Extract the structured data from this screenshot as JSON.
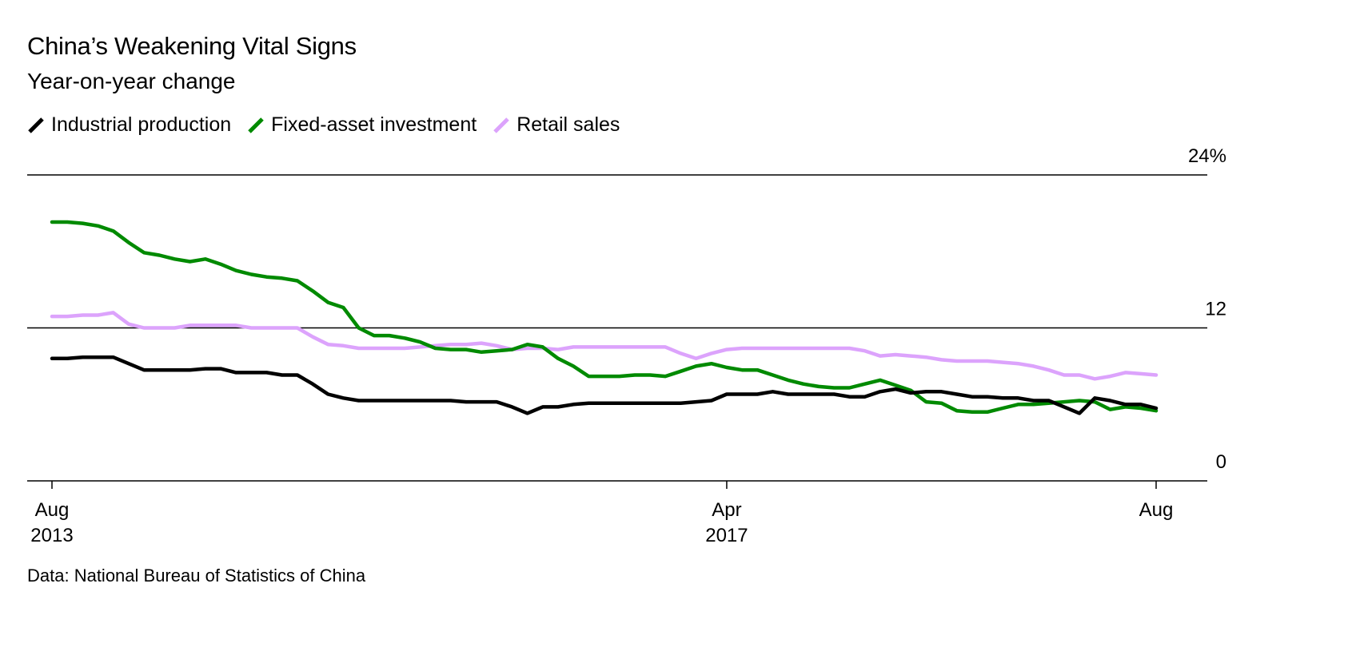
{
  "chart_data": {
    "type": "line",
    "title": "China’s Weakening Vital Signs",
    "subtitle": "Year-on-year change",
    "source": "Data: National Bureau of Statistics of China",
    "ylim": [
      0,
      24
    ],
    "y_ticks": [
      {
        "value": 0,
        "label": "0"
      },
      {
        "value": 12,
        "label": "12"
      },
      {
        "value": 24,
        "label": "24%"
      }
    ],
    "x_ticks": [
      {
        "date": "2013-08",
        "label": "Aug",
        "label2": "2013"
      },
      {
        "date": "2017-04",
        "label": "Apr",
        "label2": "2017"
      },
      {
        "date": "2019-08",
        "label": "Aug",
        "label2": ""
      }
    ],
    "grid": "horizontal at labeled ticks",
    "legend_placement": "top-left",
    "x": [
      "2013-08",
      "2013-09",
      "2013-10",
      "2013-11",
      "2013-12",
      "2014-01",
      "2014-02",
      "2014-03",
      "2014-04",
      "2014-05",
      "2014-06",
      "2014-07",
      "2014-08",
      "2014-09",
      "2014-10",
      "2014-11",
      "2014-12",
      "2015-01",
      "2015-02",
      "2015-03",
      "2015-04",
      "2015-05",
      "2015-06",
      "2015-07",
      "2015-08",
      "2015-09",
      "2015-10",
      "2015-11",
      "2015-12",
      "2016-01",
      "2016-02",
      "2016-03",
      "2016-04",
      "2016-05",
      "2016-06",
      "2016-07",
      "2016-08",
      "2016-09",
      "2016-10",
      "2016-11",
      "2016-12",
      "2017-01",
      "2017-02",
      "2017-03",
      "2017-04",
      "2017-05",
      "2017-06",
      "2017-07",
      "2017-08",
      "2017-09",
      "2017-10",
      "2017-11",
      "2017-12",
      "2018-01",
      "2018-02",
      "2018-03",
      "2018-04",
      "2018-05",
      "2018-06",
      "2018-07",
      "2018-08",
      "2018-09",
      "2018-10",
      "2018-11",
      "2018-12",
      "2019-01",
      "2019-02",
      "2019-03",
      "2019-04",
      "2019-05",
      "2019-06",
      "2019-07",
      "2019-08"
    ],
    "series": [
      {
        "name": "Industrial production",
        "color": "#000000",
        "values": [
          9.6,
          9.6,
          9.7,
          9.7,
          9.7,
          9.2,
          8.7,
          8.7,
          8.7,
          8.7,
          8.8,
          8.8,
          8.5,
          8.5,
          8.5,
          8.3,
          8.3,
          7.6,
          6.8,
          6.5,
          6.3,
          6.3,
          6.3,
          6.3,
          6.3,
          6.3,
          6.3,
          6.2,
          6.2,
          6.2,
          5.8,
          5.3,
          5.8,
          5.8,
          6.0,
          6.1,
          6.1,
          6.1,
          6.1,
          6.1,
          6.1,
          6.1,
          6.2,
          6.3,
          6.8,
          6.8,
          6.8,
          7.0,
          6.8,
          6.8,
          6.8,
          6.8,
          6.6,
          6.6,
          7.0,
          7.2,
          6.9,
          7.0,
          7.0,
          6.8,
          6.6,
          6.6,
          6.5,
          6.5,
          6.3,
          6.3,
          5.8,
          5.3,
          6.5,
          6.3,
          6.0,
          6.0,
          5.7
        ]
      },
      {
        "name": "Fixed-asset investment",
        "color": "#008a00",
        "values": [
          20.3,
          20.3,
          20.2,
          20.0,
          19.6,
          18.7,
          17.9,
          17.7,
          17.4,
          17.2,
          17.4,
          17.0,
          16.5,
          16.2,
          16.0,
          15.9,
          15.7,
          14.9,
          14.0,
          13.6,
          12.0,
          11.4,
          11.4,
          11.2,
          10.9,
          10.4,
          10.3,
          10.3,
          10.1,
          10.2,
          10.3,
          10.7,
          10.5,
          9.6,
          9.0,
          8.2,
          8.2,
          8.2,
          8.3,
          8.3,
          8.2,
          8.6,
          9.0,
          9.2,
          8.9,
          8.7,
          8.7,
          8.3,
          7.9,
          7.6,
          7.4,
          7.3,
          7.3,
          7.6,
          7.9,
          7.5,
          7.1,
          6.2,
          6.1,
          5.5,
          5.4,
          5.4,
          5.7,
          6.0,
          6.0,
          6.1,
          6.2,
          6.3,
          6.2,
          5.6,
          5.8,
          5.7,
          5.5
        ]
      },
      {
        "name": "Retail sales",
        "color": "#dca3fc",
        "values": [
          12.9,
          12.9,
          13.0,
          13.0,
          13.2,
          12.3,
          12.0,
          12.0,
          12.0,
          12.2,
          12.2,
          12.2,
          12.2,
          12.0,
          12.0,
          12.0,
          12.0,
          11.3,
          10.7,
          10.6,
          10.4,
          10.4,
          10.4,
          10.4,
          10.5,
          10.6,
          10.7,
          10.7,
          10.8,
          10.6,
          10.3,
          10.4,
          10.4,
          10.3,
          10.5,
          10.5,
          10.5,
          10.5,
          10.5,
          10.5,
          10.5,
          10.0,
          9.6,
          10.0,
          10.3,
          10.4,
          10.4,
          10.4,
          10.4,
          10.4,
          10.4,
          10.4,
          10.4,
          10.2,
          9.8,
          9.9,
          9.8,
          9.7,
          9.5,
          9.4,
          9.4,
          9.4,
          9.3,
          9.2,
          9.0,
          8.7,
          8.3,
          8.3,
          8.0,
          8.2,
          8.5,
          8.4,
          8.3
        ]
      }
    ]
  }
}
